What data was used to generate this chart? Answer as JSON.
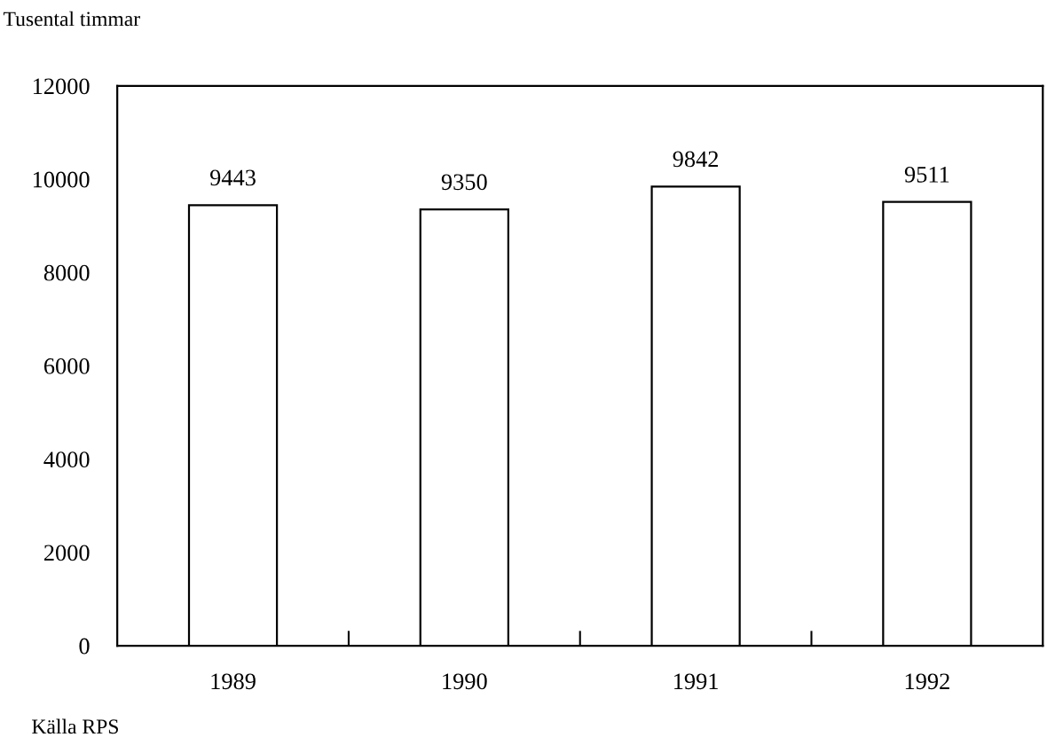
{
  "chart_data": {
    "type": "bar",
    "ylabel": "Tusental timmar",
    "categories": [
      "1989",
      "1990",
      "1991",
      "1992"
    ],
    "values": [
      9443,
      9350,
      9842,
      9511
    ],
    "color": "#ffffff",
    "ylim": [
      0,
      12000
    ],
    "yticks": [
      0,
      2000,
      4000,
      6000,
      8000,
      10000,
      12000
    ],
    "data_labels": true,
    "grid": false,
    "legend": false,
    "annotations": [
      "Källa RPS"
    ]
  }
}
